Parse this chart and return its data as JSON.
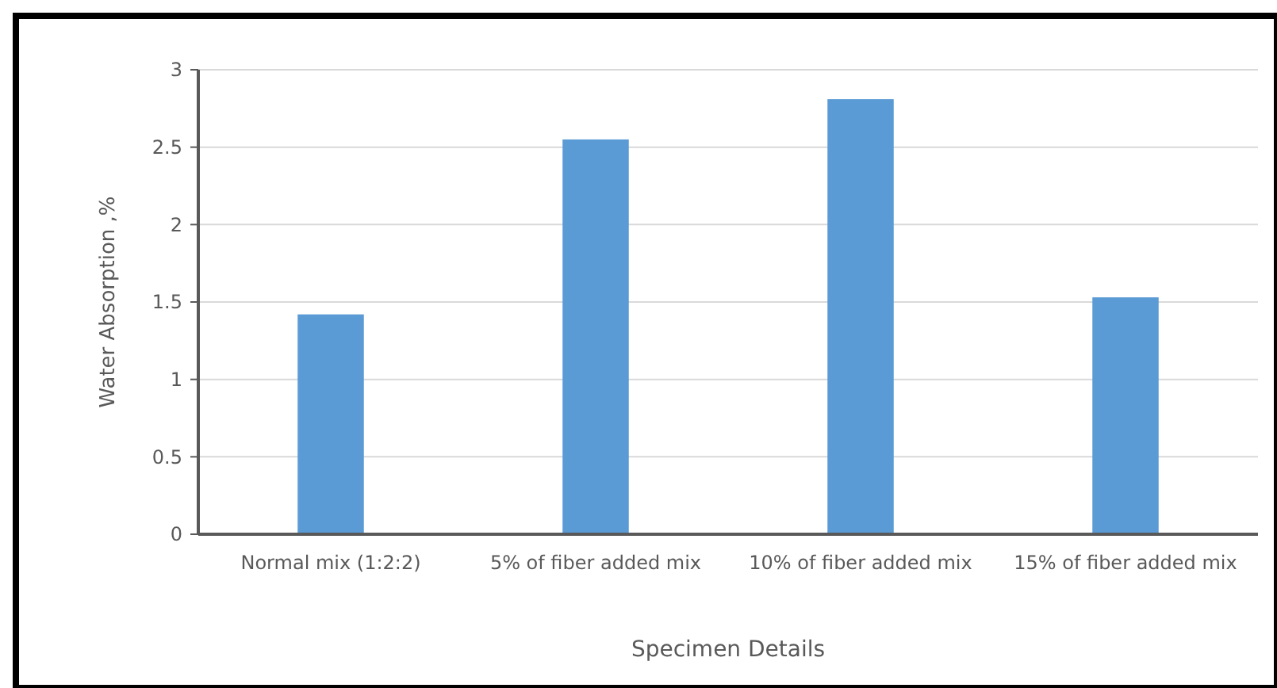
{
  "chart_data": {
    "type": "bar",
    "xlabel": "Specimen Details",
    "ylabel": "Water Absorption ,%",
    "categories": [
      "Normal mix (1:2:2)",
      "5% of fiber added mix",
      "10% of fiber added mix",
      "15% of fiber added mix"
    ],
    "values": [
      1.42,
      2.55,
      2.81,
      1.53
    ],
    "color": "#5b9bd5",
    "ylim": [
      0,
      3
    ],
    "yticks": [
      0,
      0.5,
      1,
      1.5,
      2,
      2.5,
      3
    ],
    "grid": "y"
  }
}
